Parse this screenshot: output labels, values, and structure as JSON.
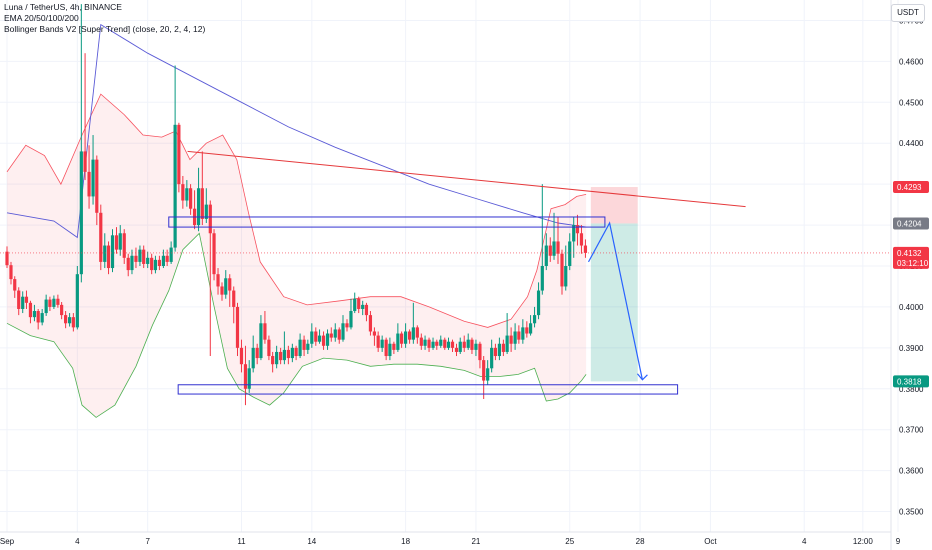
{
  "header": {
    "symbol_line": "Luna / TetherUS, 4h, BINANCE",
    "ema_line": "EMA 20/50/100/200",
    "bb_line": "Bollinger Bands V2 [Super Trend] (close, 20, 2, 4, 12)"
  },
  "currency_button": "USDT",
  "price_tags": [
    {
      "label": "0.4293",
      "value": 0.4293,
      "color": "#f23645"
    },
    {
      "label": "0.4204",
      "value": 0.4204,
      "color": "#787b86"
    },
    {
      "label": "0.4132",
      "sublabel": "03:12:10",
      "value": 0.4132,
      "color": "#f23645"
    },
    {
      "label": "0.3818",
      "value": 0.3818,
      "color": "#089981"
    }
  ],
  "colors": {
    "up": "#089981",
    "down": "#f23645",
    "ema": "#5b5bd6",
    "band_upper": "#f7525f",
    "band_lower": "#4caf50",
    "box": "#3030d0",
    "projection": "#2962ff",
    "trendline": "#e5393b"
  },
  "chart_data": {
    "type": "candlestick",
    "title": "Luna / TetherUS, 4h, BINANCE",
    "y_axis": {
      "ticks": [
        "0.4700",
        "0.4600",
        "0.4500",
        "0.4400",
        "0.4300",
        "0.4200",
        "0.4100",
        "0.4000",
        "0.3900",
        "0.3800",
        "0.3700",
        "0.3600",
        "0.3500"
      ],
      "range": [
        0.345,
        0.475
      ]
    },
    "x_axis": {
      "ticks": [
        "Sep",
        "4",
        "7",
        "11",
        "14",
        "18",
        "21",
        "25",
        "28",
        "Oct",
        "4",
        "12:00",
        "9"
      ],
      "range_days": [
        1,
        39
      ]
    },
    "candles": [
      [
        1.0,
        0.4135,
        0.4102,
        0.4148,
        0.4095
      ],
      [
        1.17,
        0.4102,
        0.4068,
        0.411,
        0.4055
      ],
      [
        1.33,
        0.4068,
        0.404,
        0.4075,
        0.4022
      ],
      [
        1.5,
        0.404,
        0.3995,
        0.4048,
        0.398
      ],
      [
        1.67,
        0.3995,
        0.4025,
        0.4038,
        0.3985
      ],
      [
        1.83,
        0.4025,
        0.401,
        0.404,
        0.3995
      ],
      [
        2.0,
        0.401,
        0.3975,
        0.4015,
        0.396
      ],
      [
        2.17,
        0.3975,
        0.399,
        0.4005,
        0.3965
      ],
      [
        2.33,
        0.399,
        0.3962,
        0.3995,
        0.3945
      ],
      [
        2.5,
        0.3962,
        0.3985,
        0.3995,
        0.3955
      ],
      [
        2.67,
        0.3985,
        0.4018,
        0.403,
        0.3978
      ],
      [
        2.83,
        0.4018,
        0.4,
        0.4025,
        0.399
      ],
      [
        3.0,
        0.4,
        0.402,
        0.4028,
        0.3995
      ],
      [
        3.17,
        0.402,
        0.4005,
        0.403,
        0.3998
      ],
      [
        3.33,
        0.4005,
        0.398,
        0.4012,
        0.397
      ],
      [
        3.5,
        0.398,
        0.396,
        0.399,
        0.3948
      ],
      [
        3.67,
        0.396,
        0.3975,
        0.3985,
        0.3952
      ],
      [
        3.83,
        0.3975,
        0.395,
        0.3985,
        0.394
      ],
      [
        4.0,
        0.395,
        0.408,
        0.41,
        0.3945
      ],
      [
        4.17,
        0.408,
        0.438,
        0.474,
        0.406
      ],
      [
        4.33,
        0.438,
        0.433,
        0.462,
        0.431
      ],
      [
        4.5,
        0.433,
        0.427,
        0.4395,
        0.424
      ],
      [
        4.67,
        0.427,
        0.436,
        0.442,
        0.425
      ],
      [
        4.83,
        0.436,
        0.423,
        0.437,
        0.42
      ],
      [
        5.0,
        0.423,
        0.411,
        0.425,
        0.409
      ],
      [
        5.17,
        0.411,
        0.415,
        0.418,
        0.4095
      ],
      [
        5.33,
        0.415,
        0.4095,
        0.416,
        0.408
      ],
      [
        5.5,
        0.4095,
        0.4175,
        0.419,
        0.4085
      ],
      [
        5.67,
        0.4175,
        0.414,
        0.4195,
        0.413
      ],
      [
        5.83,
        0.414,
        0.418,
        0.42,
        0.4125
      ],
      [
        6.0,
        0.418,
        0.412,
        0.419,
        0.4105
      ],
      [
        6.17,
        0.412,
        0.409,
        0.413,
        0.4075
      ],
      [
        6.33,
        0.409,
        0.4125,
        0.414,
        0.408
      ],
      [
        6.5,
        0.4125,
        0.411,
        0.4145,
        0.4095
      ],
      [
        6.67,
        0.411,
        0.414,
        0.415,
        0.41
      ],
      [
        6.83,
        0.414,
        0.4105,
        0.415,
        0.4095
      ],
      [
        7.0,
        0.4105,
        0.412,
        0.4135,
        0.4095
      ],
      [
        7.17,
        0.412,
        0.409,
        0.413,
        0.408
      ],
      [
        7.33,
        0.409,
        0.4115,
        0.4125,
        0.4082
      ],
      [
        7.5,
        0.4115,
        0.41,
        0.4125,
        0.409
      ],
      [
        7.67,
        0.41,
        0.4125,
        0.414,
        0.4095
      ],
      [
        7.83,
        0.4125,
        0.411,
        0.414,
        0.41
      ],
      [
        8.0,
        0.411,
        0.4145,
        0.416,
        0.4105
      ],
      [
        8.17,
        0.4145,
        0.4445,
        0.459,
        0.4135
      ],
      [
        8.33,
        0.4445,
        0.43,
        0.445,
        0.428
      ],
      [
        8.5,
        0.43,
        0.426,
        0.432,
        0.424
      ],
      [
        8.67,
        0.426,
        0.429,
        0.431,
        0.4245
      ],
      [
        8.83,
        0.429,
        0.424,
        0.43,
        0.4225
      ],
      [
        9.0,
        0.424,
        0.42,
        0.4285,
        0.419
      ],
      [
        9.17,
        0.42,
        0.429,
        0.434,
        0.4185
      ],
      [
        9.33,
        0.429,
        0.4215,
        0.438,
        0.42
      ],
      [
        9.5,
        0.4215,
        0.425,
        0.429,
        0.4205
      ],
      [
        9.67,
        0.425,
        0.418,
        0.426,
        0.388
      ],
      [
        9.83,
        0.418,
        0.408,
        0.419,
        0.4065
      ],
      [
        10.0,
        0.408,
        0.405,
        0.4095,
        0.403
      ],
      [
        10.17,
        0.405,
        0.403,
        0.406,
        0.4015
      ],
      [
        10.33,
        0.403,
        0.407,
        0.409,
        0.402
      ],
      [
        10.5,
        0.407,
        0.404,
        0.408,
        0.4
      ],
      [
        10.67,
        0.404,
        0.4,
        0.405,
        0.396
      ],
      [
        10.83,
        0.4,
        0.39,
        0.401,
        0.388
      ],
      [
        11.0,
        0.39,
        0.386,
        0.392,
        0.384
      ],
      [
        11.17,
        0.386,
        0.38,
        0.3905,
        0.376
      ],
      [
        11.33,
        0.38,
        0.385,
        0.387,
        0.379
      ],
      [
        11.5,
        0.385,
        0.39,
        0.393,
        0.384
      ],
      [
        11.67,
        0.39,
        0.3875,
        0.391,
        0.386
      ],
      [
        11.83,
        0.3875,
        0.396,
        0.398,
        0.387
      ],
      [
        12.0,
        0.396,
        0.392,
        0.399,
        0.391
      ],
      [
        12.17,
        0.392,
        0.388,
        0.393,
        0.387
      ],
      [
        12.33,
        0.388,
        0.386,
        0.389,
        0.384
      ],
      [
        12.5,
        0.386,
        0.389,
        0.3905,
        0.385
      ],
      [
        12.67,
        0.389,
        0.387,
        0.39,
        0.386
      ],
      [
        12.83,
        0.387,
        0.3895,
        0.394,
        0.386
      ],
      [
        13.0,
        0.3895,
        0.3875,
        0.3905,
        0.386
      ],
      [
        13.17,
        0.3875,
        0.39,
        0.391,
        0.3865
      ],
      [
        13.33,
        0.39,
        0.388,
        0.3905,
        0.387
      ],
      [
        13.5,
        0.388,
        0.392,
        0.3935,
        0.3875
      ],
      [
        13.67,
        0.392,
        0.3895,
        0.393,
        0.388
      ],
      [
        13.83,
        0.3895,
        0.391,
        0.392,
        0.3885
      ],
      [
        14.0,
        0.391,
        0.394,
        0.396,
        0.39
      ],
      [
        14.17,
        0.394,
        0.3915,
        0.395,
        0.3905
      ],
      [
        14.33,
        0.3915,
        0.393,
        0.3945,
        0.391
      ],
      [
        14.5,
        0.393,
        0.3905,
        0.394,
        0.3895
      ],
      [
        14.67,
        0.3905,
        0.3935,
        0.3945,
        0.3895
      ],
      [
        14.83,
        0.3935,
        0.3925,
        0.395,
        0.3915
      ],
      [
        15.0,
        0.3925,
        0.3945,
        0.396,
        0.3915
      ],
      [
        15.17,
        0.3945,
        0.392,
        0.395,
        0.391
      ],
      [
        15.33,
        0.392,
        0.396,
        0.398,
        0.3915
      ],
      [
        15.5,
        0.396,
        0.395,
        0.397,
        0.394
      ],
      [
        15.67,
        0.395,
        0.399,
        0.402,
        0.3945
      ],
      [
        15.83,
        0.399,
        0.402,
        0.4035,
        0.3985
      ],
      [
        16.0,
        0.402,
        0.3995,
        0.4025,
        0.3985
      ],
      [
        16.17,
        0.3995,
        0.4005,
        0.4015,
        0.398
      ],
      [
        16.33,
        0.4005,
        0.398,
        0.401,
        0.3965
      ],
      [
        16.5,
        0.398,
        0.394,
        0.399,
        0.393
      ],
      [
        16.67,
        0.394,
        0.393,
        0.395,
        0.3905
      ],
      [
        16.83,
        0.393,
        0.39,
        0.394,
        0.389
      ],
      [
        17.0,
        0.39,
        0.392,
        0.393,
        0.389
      ],
      [
        17.17,
        0.392,
        0.388,
        0.3925,
        0.387
      ],
      [
        17.33,
        0.388,
        0.391,
        0.3925,
        0.387
      ],
      [
        17.5,
        0.391,
        0.3895,
        0.3915,
        0.3885
      ],
      [
        17.67,
        0.3895,
        0.3935,
        0.396,
        0.389
      ],
      [
        17.83,
        0.3935,
        0.391,
        0.394,
        0.39
      ],
      [
        18.0,
        0.391,
        0.394,
        0.396,
        0.39
      ],
      [
        18.17,
        0.394,
        0.392,
        0.3945,
        0.391
      ],
      [
        18.33,
        0.392,
        0.395,
        0.401,
        0.391
      ],
      [
        18.5,
        0.395,
        0.3925,
        0.3955,
        0.391
      ],
      [
        18.67,
        0.3925,
        0.3905,
        0.3935,
        0.3895
      ],
      [
        18.83,
        0.3905,
        0.392,
        0.393,
        0.3895
      ],
      [
        19.0,
        0.392,
        0.39,
        0.3925,
        0.389
      ],
      [
        19.17,
        0.39,
        0.3915,
        0.3925,
        0.3895
      ],
      [
        19.33,
        0.3915,
        0.3905,
        0.392,
        0.3895
      ],
      [
        19.5,
        0.3905,
        0.392,
        0.393,
        0.39
      ],
      [
        19.67,
        0.392,
        0.39,
        0.3925,
        0.3895
      ],
      [
        19.83,
        0.39,
        0.3915,
        0.3925,
        0.3895
      ],
      [
        20.0,
        0.3915,
        0.39,
        0.392,
        0.389
      ],
      [
        20.17,
        0.39,
        0.389,
        0.391,
        0.388
      ],
      [
        20.33,
        0.389,
        0.3915,
        0.3925,
        0.3885
      ],
      [
        20.5,
        0.3915,
        0.39,
        0.393,
        0.389
      ],
      [
        20.67,
        0.39,
        0.392,
        0.3935,
        0.3895
      ],
      [
        20.83,
        0.392,
        0.3895,
        0.3925,
        0.3885
      ],
      [
        21.0,
        0.3895,
        0.391,
        0.392,
        0.388
      ],
      [
        21.17,
        0.391,
        0.387,
        0.3915,
        0.385
      ],
      [
        21.33,
        0.387,
        0.382,
        0.388,
        0.3775
      ],
      [
        21.5,
        0.382,
        0.385,
        0.387,
        0.381
      ],
      [
        21.67,
        0.385,
        0.39,
        0.392,
        0.384
      ],
      [
        21.83,
        0.39,
        0.388,
        0.391,
        0.387
      ],
      [
        22.0,
        0.388,
        0.391,
        0.3925,
        0.387
      ],
      [
        22.17,
        0.391,
        0.389,
        0.392,
        0.388
      ],
      [
        22.33,
        0.389,
        0.393,
        0.3985,
        0.3885
      ],
      [
        22.5,
        0.393,
        0.391,
        0.395,
        0.389
      ],
      [
        22.67,
        0.391,
        0.394,
        0.396,
        0.3895
      ],
      [
        22.83,
        0.394,
        0.392,
        0.3955,
        0.391
      ],
      [
        23.0,
        0.392,
        0.395,
        0.397,
        0.391
      ],
      [
        23.17,
        0.395,
        0.3935,
        0.3965,
        0.3925
      ],
      [
        23.33,
        0.3935,
        0.396,
        0.398,
        0.393
      ],
      [
        23.5,
        0.396,
        0.398,
        0.4,
        0.395
      ],
      [
        23.67,
        0.398,
        0.404,
        0.406,
        0.397
      ],
      [
        23.83,
        0.404,
        0.41,
        0.43,
        0.403
      ],
      [
        24.0,
        0.41,
        0.415,
        0.418,
        0.409
      ],
      [
        24.17,
        0.415,
        0.4125,
        0.417,
        0.411
      ],
      [
        24.33,
        0.4125,
        0.416,
        0.423,
        0.4115
      ],
      [
        24.5,
        0.416,
        0.413,
        0.422,
        0.4105
      ],
      [
        24.67,
        0.413,
        0.405,
        0.414,
        0.403
      ],
      [
        24.83,
        0.405,
        0.41,
        0.415,
        0.404
      ],
      [
        25.0,
        0.41,
        0.416,
        0.418,
        0.409
      ],
      [
        25.17,
        0.416,
        0.42,
        0.422,
        0.412
      ],
      [
        25.33,
        0.42,
        0.418,
        0.4225,
        0.415
      ],
      [
        25.5,
        0.418,
        0.415,
        0.42,
        0.413
      ],
      [
        25.67,
        0.415,
        0.4132,
        0.4165,
        0.412
      ]
    ],
    "ema": [
      [
        1,
        0.423
      ],
      [
        3,
        0.421
      ],
      [
        4,
        0.417
      ],
      [
        5,
        0.469
      ],
      [
        7,
        0.462
      ],
      [
        9,
        0.456
      ],
      [
        11,
        0.45
      ],
      [
        13,
        0.444
      ],
      [
        15,
        0.439
      ],
      [
        17,
        0.4345
      ],
      [
        19,
        0.43
      ],
      [
        21,
        0.4265
      ],
      [
        23,
        0.423
      ],
      [
        24.5,
        0.4205
      ],
      [
        25.7,
        0.4195
      ]
    ],
    "bb_upper": [
      [
        1,
        0.433
      ],
      [
        1.8,
        0.4395
      ],
      [
        2.6,
        0.437
      ],
      [
        3.3,
        0.43
      ],
      [
        4.2,
        0.442
      ],
      [
        5,
        0.452
      ],
      [
        6,
        0.447
      ],
      [
        6.8,
        0.442
      ],
      [
        7.6,
        0.4415
      ],
      [
        8.2,
        0.443
      ],
      [
        8.8,
        0.436
      ],
      [
        9.5,
        0.44
      ],
      [
        10.2,
        0.442
      ],
      [
        10.8,
        0.436
      ],
      [
        11.3,
        0.423
      ],
      [
        11.8,
        0.411
      ],
      [
        12.8,
        0.4025
      ],
      [
        13.8,
        0.4005
      ],
      [
        15.2,
        0.4015
      ],
      [
        16.5,
        0.4025
      ],
      [
        17.8,
        0.4025
      ],
      [
        19,
        0.4
      ],
      [
        20.5,
        0.3965
      ],
      [
        21.5,
        0.395
      ],
      [
        22.5,
        0.397
      ],
      [
        23.2,
        0.4025
      ],
      [
        23.6,
        0.409
      ],
      [
        24.2,
        0.424
      ],
      [
        24.8,
        0.425
      ],
      [
        25.3,
        0.427
      ],
      [
        25.7,
        0.4275
      ]
    ],
    "bb_lower": [
      [
        1,
        0.396
      ],
      [
        2,
        0.393
      ],
      [
        3,
        0.3915
      ],
      [
        3.8,
        0.385
      ],
      [
        4.2,
        0.376
      ],
      [
        4.8,
        0.373
      ],
      [
        5.6,
        0.376
      ],
      [
        6.5,
        0.3855
      ],
      [
        7.2,
        0.3955
      ],
      [
        7.9,
        0.404
      ],
      [
        8.5,
        0.414
      ],
      [
        9.2,
        0.418
      ],
      [
        9.8,
        0.401
      ],
      [
        10.4,
        0.385
      ],
      [
        10.9,
        0.38
      ],
      [
        11.5,
        0.378
      ],
      [
        12.2,
        0.376
      ],
      [
        12.8,
        0.379
      ],
      [
        13.6,
        0.3855
      ],
      [
        14.5,
        0.3875
      ],
      [
        15.5,
        0.387
      ],
      [
        16.5,
        0.3855
      ],
      [
        17.5,
        0.386
      ],
      [
        18.5,
        0.386
      ],
      [
        19.5,
        0.3855
      ],
      [
        20.5,
        0.3845
      ],
      [
        21.2,
        0.383
      ],
      [
        22,
        0.383
      ],
      [
        22.8,
        0.3835
      ],
      [
        23.5,
        0.385
      ],
      [
        24,
        0.377
      ],
      [
        24.5,
        0.3775
      ],
      [
        25,
        0.379
      ],
      [
        25.5,
        0.382
      ],
      [
        25.7,
        0.3835
      ]
    ],
    "annotations": {
      "resistance_box": {
        "x": [
          7.9,
          26.5
        ],
        "y": [
          0.42,
          0.421
        ]
      },
      "support_box": {
        "x": [
          8.3,
          29.6
        ],
        "y": [
          0.3792,
          0.38
        ]
      },
      "trendline": [
        [
          8.7,
          0.438
        ],
        [
          32.5,
          0.4245
        ]
      ],
      "stop_zone": {
        "x": [
          25.9,
          27.9
        ],
        "y": [
          0.4204,
          0.4293
        ]
      },
      "target_zone": {
        "x": [
          25.9,
          27.9
        ],
        "y": [
          0.3818,
          0.4204
        ]
      },
      "projection": [
        [
          25.8,
          0.411
        ],
        [
          26.7,
          0.4205
        ],
        [
          28.1,
          0.3822
        ]
      ]
    }
  }
}
